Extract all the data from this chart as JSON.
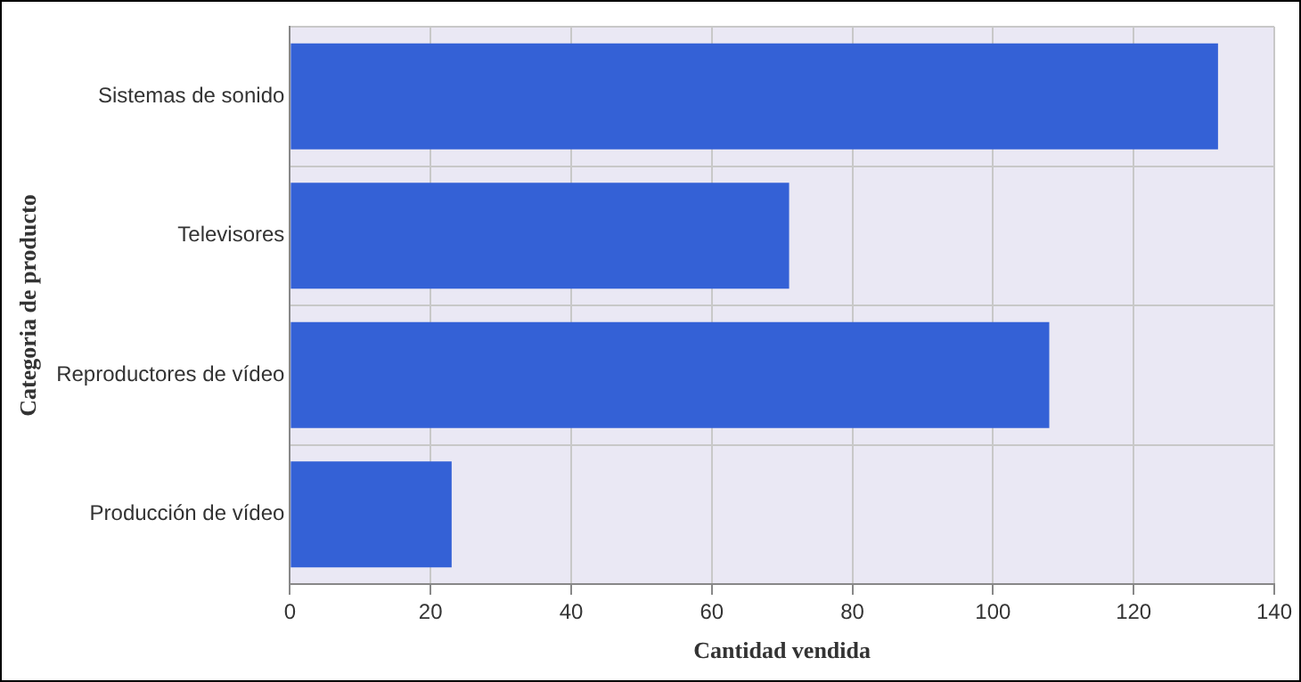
{
  "chart_data": {
    "type": "bar",
    "orientation": "horizontal",
    "xlabel": "Cantidad vendida",
    "ylabel": "Categoria de producto",
    "categories": [
      "Sistemas de sonido",
      "Televisores",
      "Reproductores de vídeo",
      "Producción de vídeo"
    ],
    "values": [
      132,
      71,
      108,
      23
    ],
    "color": "#3461d6",
    "xlim": [
      0,
      140
    ],
    "xticks": [
      0,
      20,
      40,
      60,
      80,
      100,
      120,
      140
    ],
    "grid": true
  }
}
